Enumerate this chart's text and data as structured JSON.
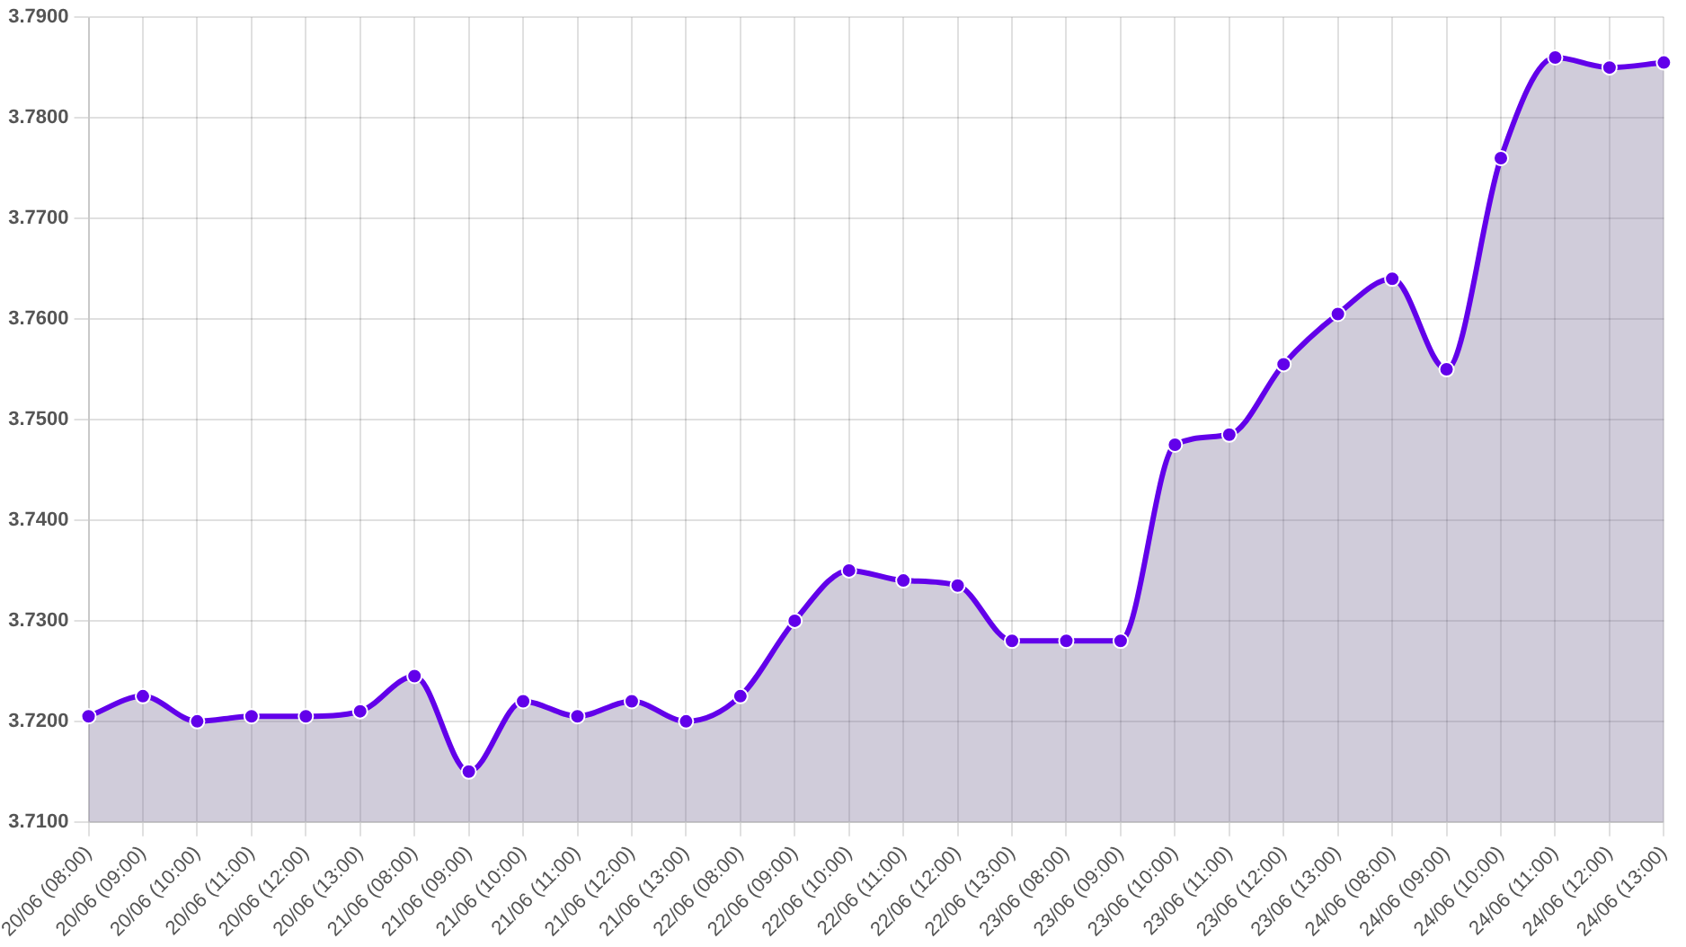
{
  "chart_data": {
    "type": "area",
    "categories": [
      "20/06 (08:00)",
      "20/06 (09:00)",
      "20/06 (10:00)",
      "20/06 (11:00)",
      "20/06 (12:00)",
      "20/06 (13:00)",
      "21/06 (08:00)",
      "21/06 (09:00)",
      "21/06 (10:00)",
      "21/06 (11:00)",
      "21/06 (12:00)",
      "21/06 (13:00)",
      "22/06 (08:00)",
      "22/06 (09:00)",
      "22/06 (10:00)",
      "22/06 (11:00)",
      "22/06 (12:00)",
      "22/06 (13:00)",
      "23/06 (08:00)",
      "23/06 (09:00)",
      "23/06 (10:00)",
      "23/06 (11:00)",
      "23/06 (12:00)",
      "23/06 (13:00)",
      "24/06 (08:00)",
      "24/06 (09:00)",
      "24/06 (10:00)",
      "24/06 (11:00)",
      "24/06 (12:00)",
      "24/06 (13:00)"
    ],
    "series": [
      {
        "color": "#6200ea",
        "values": [
          3.7205,
          3.7225,
          3.72,
          3.7205,
          3.7205,
          3.721,
          3.7245,
          3.715,
          3.722,
          3.7205,
          3.722,
          3.72,
          3.7225,
          3.73,
          3.735,
          3.734,
          3.7335,
          3.728,
          3.728,
          3.728,
          3.7475,
          3.7485,
          3.7555,
          3.7605,
          3.764,
          3.755,
          3.776,
          3.786,
          3.785,
          3.7855
        ]
      }
    ],
    "ylim": [
      3.71,
      3.79
    ],
    "yticks": [
      {
        "value": 3.71,
        "label": "3.7100"
      },
      {
        "value": 3.72,
        "label": "3.7200"
      },
      {
        "value": 3.73,
        "label": "3.7300"
      },
      {
        "value": 3.74,
        "label": "3.7400"
      },
      {
        "value": 3.75,
        "label": "3.7500"
      },
      {
        "value": 3.76,
        "label": "3.7600"
      },
      {
        "value": 3.77,
        "label": "3.7700"
      },
      {
        "value": 3.78,
        "label": "3.7800"
      },
      {
        "value": 3.79,
        "label": "3.7900"
      }
    ],
    "grid": true,
    "marker": "circle",
    "line_style": "solid"
  }
}
